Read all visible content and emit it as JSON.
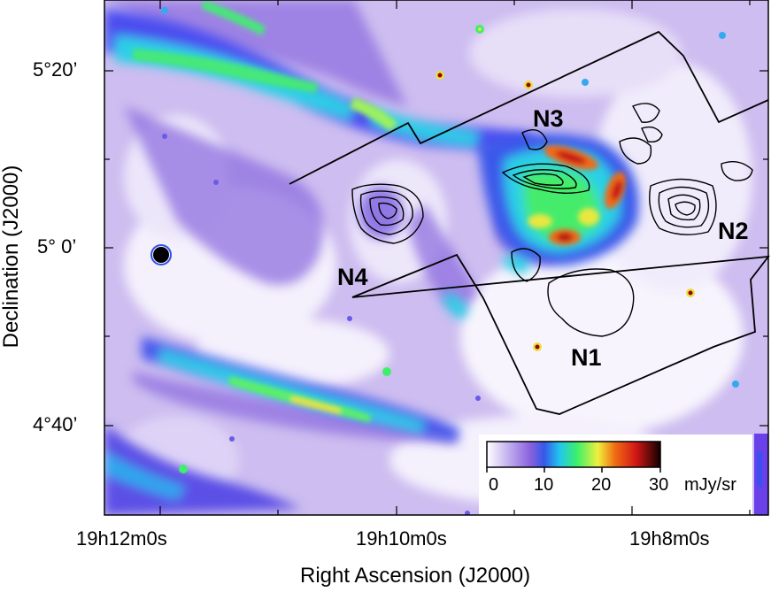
{
  "image": {
    "description_units": "mJy/sr",
    "colormap_stops": [
      "#ffffff",
      "#c9b8f0",
      "#8d6ee0",
      "#3a58e8",
      "#24c8f0",
      "#3cf06a",
      "#f0f03c",
      "#f06a14",
      "#d81818",
      "#1a0000"
    ]
  },
  "axes": {
    "x_title": "Right Ascension (J2000)",
    "y_title": "Declination (J2000)",
    "x_ticks": [
      "19h12m0s",
      "19h10m0s",
      "19h8m0s"
    ],
    "y_ticks": [
      "5°20’",
      "5° 0’",
      "4°40’"
    ]
  },
  "regions": {
    "n1": "N1",
    "n2": "N2",
    "n3": "N3",
    "n4": "N4"
  },
  "colorbar": {
    "ticks": [
      "0",
      "10",
      "20",
      "30"
    ],
    "unit": "mJy/sr",
    "range": [
      0,
      30
    ]
  }
}
